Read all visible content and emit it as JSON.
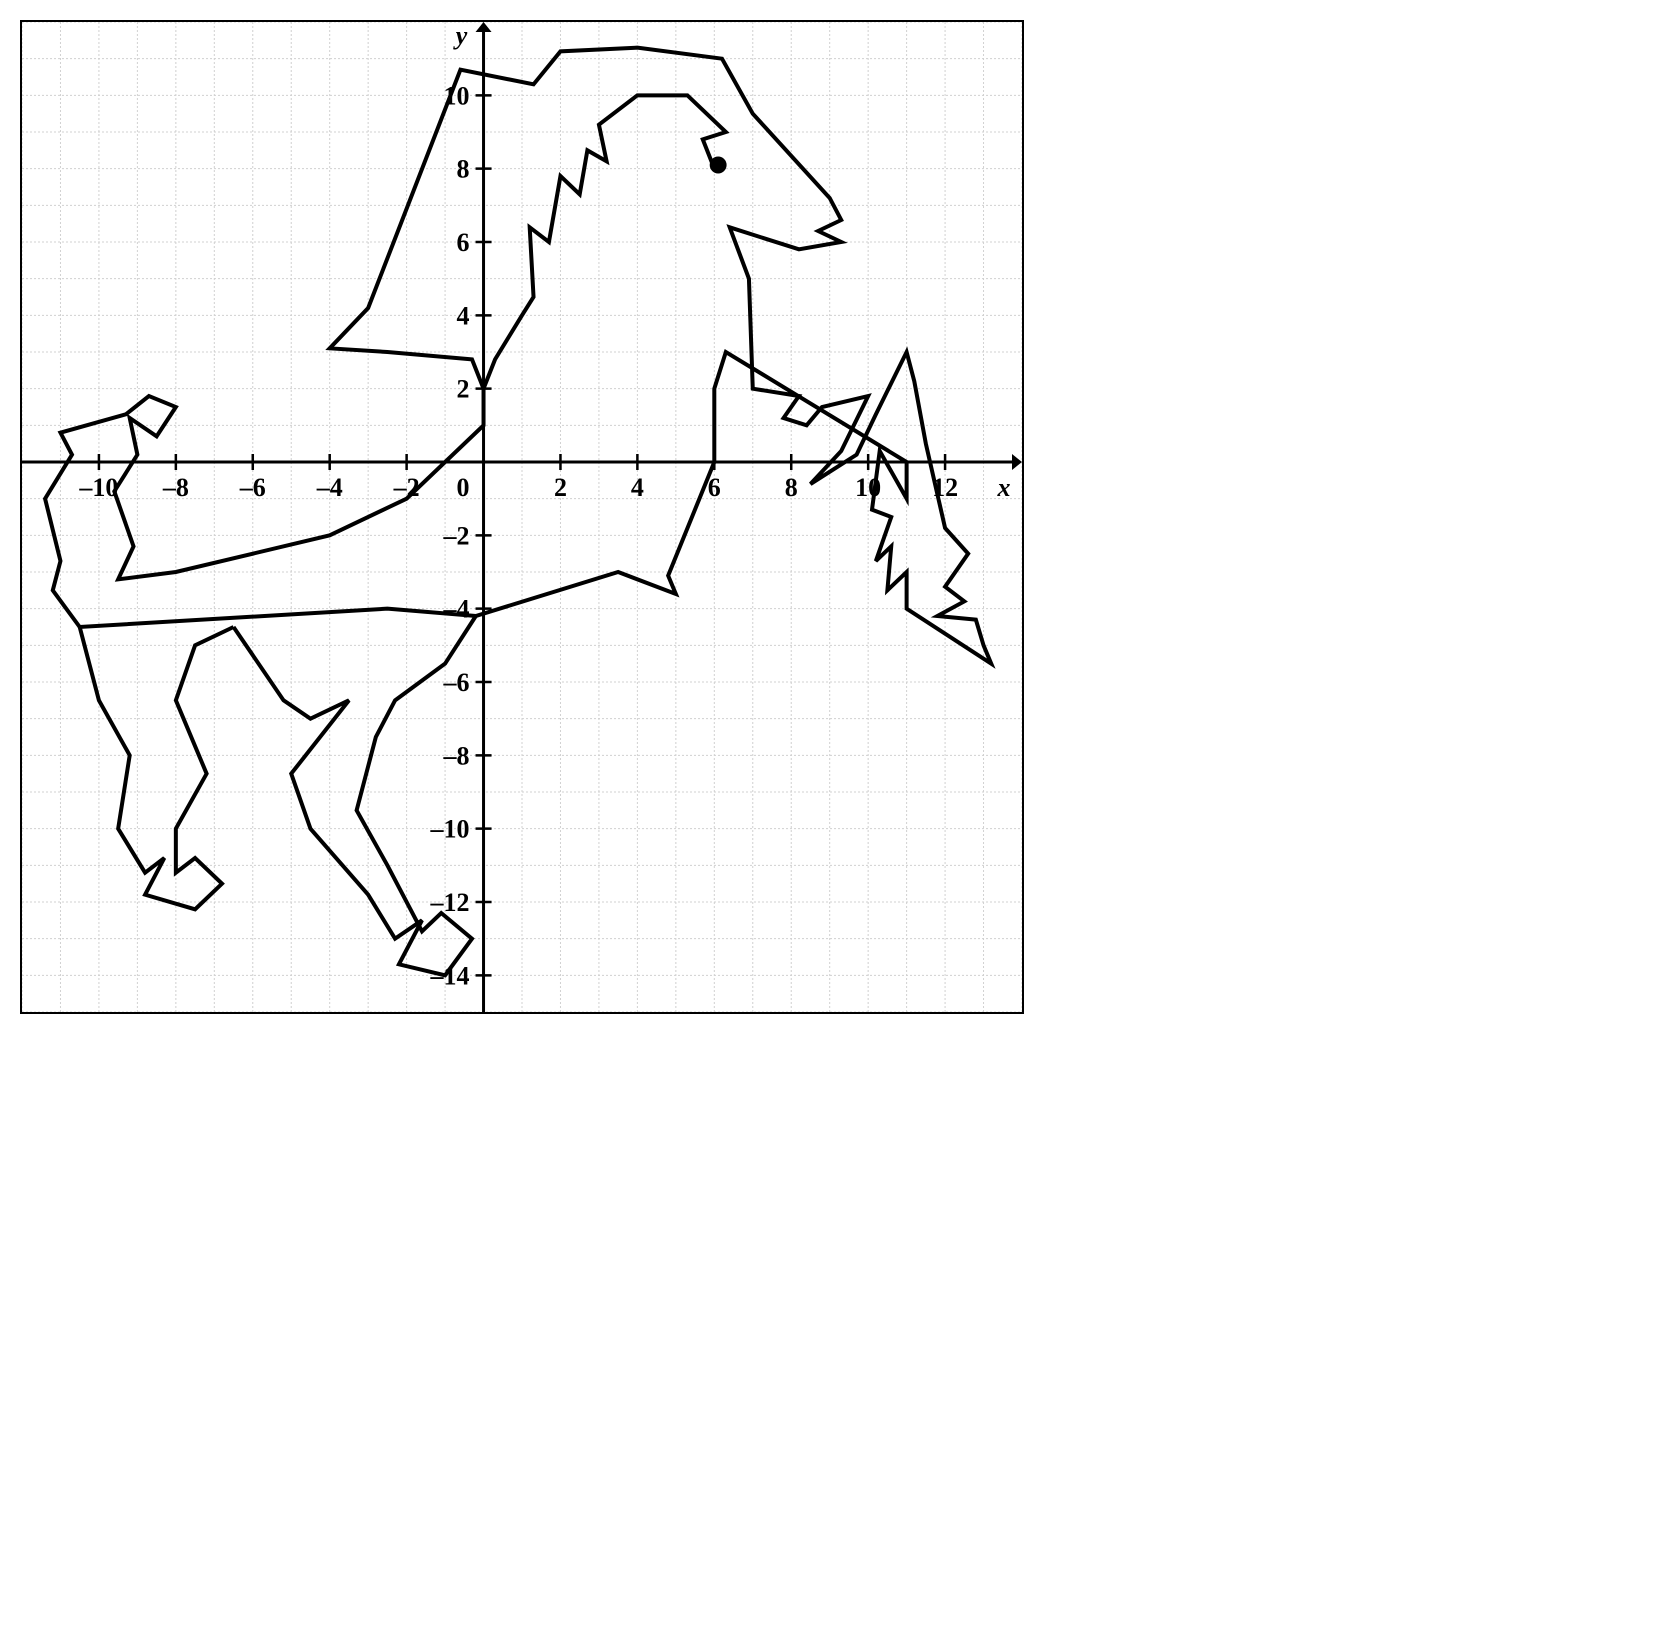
{
  "chart": {
    "type": "coordinate-plot",
    "background_color": "#ffffff",
    "grid_color": "#d0d0d0",
    "axis_color": "#000000",
    "x_range": [
      -12,
      14
    ],
    "y_range": [
      -15,
      12
    ],
    "x_ticks": [
      -10,
      -8,
      -6,
      -4,
      -2,
      0,
      2,
      4,
      6,
      8,
      10,
      12
    ],
    "y_ticks": [
      -14,
      -12,
      -10,
      -8,
      -6,
      -4,
      -2,
      2,
      4,
      6,
      8,
      10
    ],
    "zero_label": "0",
    "x_axis_label": "x",
    "y_axis_label": "y",
    "tick_fontsize": 26,
    "axis_label_fontsize": 26,
    "line_width": 4,
    "horse_outline": [
      [
        6,
        8
      ],
      [
        5.7,
        8.8
      ],
      [
        6.3,
        9
      ],
      [
        5.3,
        10
      ],
      [
        4,
        10
      ],
      [
        3,
        9.2
      ],
      [
        3.2,
        8.2
      ],
      [
        2.7,
        8.5
      ],
      [
        2.5,
        7.3
      ],
      [
        2,
        7.8
      ],
      [
        1.7,
        6
      ],
      [
        1.2,
        6.4
      ],
      [
        1.3,
        4.5
      ],
      [
        1,
        4
      ],
      [
        0.3,
        2.8
      ],
      [
        0,
        2
      ],
      [
        -0.3,
        2.8
      ],
      [
        -2.5,
        3
      ],
      [
        -4,
        3.1
      ],
      [
        -3,
        4.2
      ],
      [
        -0.6,
        10.7
      ],
      [
        1.3,
        10.3
      ],
      [
        2,
        11.2
      ],
      [
        4,
        11.3
      ],
      [
        6.2,
        11
      ],
      [
        7,
        9.5
      ],
      [
        9,
        7.2
      ],
      [
        9.3,
        6.6
      ],
      [
        8.7,
        6.3
      ],
      [
        9.3,
        6
      ],
      [
        8.2,
        5.8
      ],
      [
        6.4,
        6.4
      ],
      [
        6.9,
        5
      ],
      [
        7,
        2
      ],
      [
        8.2,
        1.8
      ],
      [
        7.8,
        1.2
      ],
      [
        8.4,
        1
      ],
      [
        8.8,
        1.5
      ],
      [
        10,
        1.8
      ],
      [
        9.3,
        0.3
      ],
      [
        8.5,
        -0.6
      ],
      [
        9.7,
        0.2
      ],
      [
        10.2,
        1.3
      ],
      [
        11,
        3
      ],
      [
        11.2,
        2.2
      ],
      [
        11.5,
        0.5
      ],
      [
        12,
        -1.8
      ],
      [
        12.6,
        -2.5
      ],
      [
        12,
        -3.4
      ],
      [
        12.5,
        -3.8
      ],
      [
        11.8,
        -4.2
      ],
      [
        12.8,
        -4.3
      ],
      [
        13,
        -5
      ],
      [
        13.2,
        -5.5
      ],
      [
        11,
        -4
      ],
      [
        11,
        -3
      ],
      [
        10.5,
        -3.5
      ],
      [
        10.6,
        -2.3
      ],
      [
        10.2,
        -2.7
      ],
      [
        10.6,
        -1.5
      ],
      [
        10.1,
        -1.3
      ],
      [
        10.3,
        0.3
      ],
      [
        11,
        -1
      ],
      [
        11,
        0
      ],
      [
        6.3,
        3
      ],
      [
        6,
        2
      ],
      [
        6,
        0
      ],
      [
        4.8,
        -3.1
      ],
      [
        5,
        -3.6
      ],
      [
        3.5,
        -3
      ],
      [
        -0.2,
        -4.2
      ],
      [
        -2.5,
        -4
      ],
      [
        -10.5,
        -4.5
      ],
      [
        -11.2,
        -3.5
      ],
      [
        -11,
        -2.7
      ],
      [
        -11.4,
        -1
      ],
      [
        -10.7,
        0.2
      ],
      [
        -11,
        0.8
      ],
      [
        -9.3,
        1.3
      ],
      [
        -8.7,
        1.8
      ],
      [
        -8,
        1.5
      ],
      [
        -8.5,
        0.7
      ],
      [
        -9.2,
        1.2
      ],
      [
        -9,
        0.2
      ],
      [
        -9.6,
        -0.8
      ],
      [
        -9.1,
        -2.3
      ],
      [
        -9.5,
        -3.2
      ],
      [
        -8,
        -3
      ],
      [
        -4,
        -2
      ],
      [
        -2,
        -1
      ],
      [
        0,
        1
      ],
      [
        0,
        2
      ]
    ],
    "back_leg_1": [
      [
        -10.5,
        -4.5
      ],
      [
        -10,
        -6.5
      ],
      [
        -9.2,
        -8
      ],
      [
        -9.5,
        -10
      ],
      [
        -8.8,
        -11.2
      ],
      [
        -8.3,
        -10.8
      ],
      [
        -8.8,
        -11.8
      ],
      [
        -7.5,
        -12.2
      ],
      [
        -6.8,
        -11.5
      ],
      [
        -7.5,
        -10.8
      ],
      [
        -8,
        -11.2
      ],
      [
        -8,
        -10
      ],
      [
        -7.2,
        -8.5
      ],
      [
        -8,
        -6.5
      ],
      [
        -7.5,
        -5
      ],
      [
        -6.5,
        -4.5
      ]
    ],
    "back_leg_2": [
      [
        -6.5,
        -4.5
      ],
      [
        -5.2,
        -6.5
      ],
      [
        -4.5,
        -7
      ],
      [
        -3.5,
        -6.5
      ],
      [
        -5,
        -8.5
      ],
      [
        -4.5,
        -10
      ],
      [
        -3,
        -11.8
      ],
      [
        -2.3,
        -13
      ],
      [
        -1.6,
        -12.5
      ],
      [
        -2.2,
        -13.7
      ],
      [
        -1,
        -14
      ],
      [
        -0.3,
        -13
      ],
      [
        -1.1,
        -12.3
      ],
      [
        -1.6,
        -12.8
      ],
      [
        -2.5,
        -11
      ],
      [
        -3.3,
        -9.5
      ],
      [
        -2.8,
        -7.5
      ],
      [
        -2.3,
        -6.5
      ],
      [
        -1,
        -5.5
      ],
      [
        -0.2,
        -4.2
      ]
    ],
    "eye_point": [
      6.1,
      8.1
    ],
    "eye_radius": 0.22
  }
}
